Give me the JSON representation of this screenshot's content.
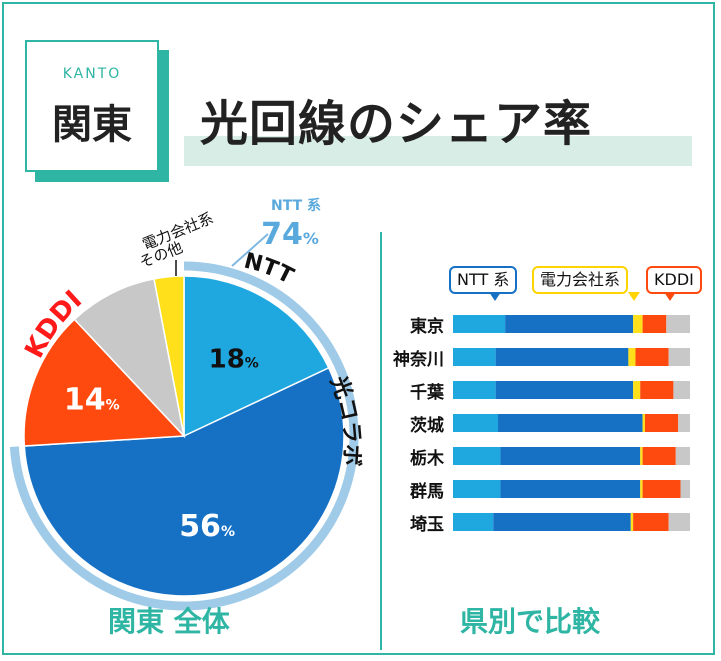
{
  "header": {
    "badge_en": "KANTO",
    "badge_jp": "関東",
    "title": "光回線のシェア率"
  },
  "colors": {
    "accent": "#2fb5a3",
    "ntt_light": "#1fa8e0",
    "ntt_dark": "#1671c4",
    "power": "#ffe01a",
    "kddi": "#ff4a0f",
    "other": "#c8c8c8",
    "ntt_ring": "#9fcbe8"
  },
  "labels": {
    "left_section": "関東 全体",
    "right_section": "県別で比較",
    "ntt_total_label": "NTT 系",
    "ntt_total_value": "74",
    "ntt_total_unit": "%",
    "ntt_arc": "NTT",
    "hikari_collab": "光コラボ",
    "kddi": "KDDI",
    "power_line1": "電力会社系",
    "power_line2": "その他"
  },
  "chart_data": [
    {
      "type": "pie",
      "title": "関東 全体",
      "slices": [
        {
          "name": "NTT",
          "value": 18,
          "label": "18"
        },
        {
          "name": "光コラボ",
          "value": 56,
          "label": "56"
        },
        {
          "name": "KDDI",
          "value": 14,
          "label": "14"
        },
        {
          "name": "その他",
          "value": 9
        },
        {
          "name": "電力会社系",
          "value": 3
        }
      ],
      "unit": "%"
    },
    {
      "type": "bar",
      "orientation": "horizontal",
      "stacked": true,
      "title": "県別で比較",
      "categories": [
        "東京",
        "神奈川",
        "千葉",
        "茨城",
        "栃木",
        "群馬",
        "埼玉"
      ],
      "legend": [
        "NTT 系",
        "電力会社系",
        "KDDI"
      ],
      "series": [
        {
          "name": "NTT",
          "values": [
            22,
            18,
            18,
            19,
            20,
            20,
            17
          ]
        },
        {
          "name": "光コラボ",
          "values": [
            54,
            56,
            58,
            61,
            59,
            59,
            58
          ]
        },
        {
          "name": "電力会社系",
          "values": [
            4,
            3,
            3,
            1,
            1,
            1,
            1
          ]
        },
        {
          "name": "KDDI",
          "values": [
            10,
            14,
            14,
            14,
            14,
            16,
            15
          ]
        },
        {
          "name": "その他",
          "values": [
            10,
            9,
            7,
            5,
            6,
            4,
            9
          ]
        }
      ],
      "xlim": [
        0,
        100
      ]
    }
  ]
}
